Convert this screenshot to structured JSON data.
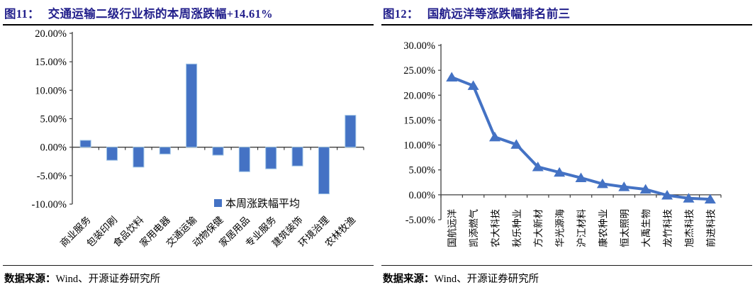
{
  "panels": [
    {
      "fig_label": "图11：",
      "title": "交通运输二级行业标的本周涨跌幅+14.61%",
      "source_prefix": "数据来源：",
      "source": "Wind、开源证券研究所"
    },
    {
      "fig_label": "图12：",
      "title": "国航远洋等涨跌幅排名前三",
      "source_prefix": "数据来源：",
      "source": "Wind、开源证券研究所"
    }
  ],
  "chart_data": [
    {
      "type": "bar",
      "title": "交通运输二级行业标的本周涨跌幅+14.61%",
      "categories": [
        "商业服务",
        "包装印刷",
        "食品饮料",
        "家用电器",
        "交通运输",
        "动物保健",
        "家居用品",
        "专业服务",
        "建筑装饰",
        "环境治理",
        "农林牧渔"
      ],
      "values": [
        1.2,
        -2.3,
        -3.5,
        -1.2,
        14.61,
        -1.4,
        -4.3,
        -3.8,
        -3.3,
        -8.2,
        5.6
      ],
      "legend": [
        "本周涨跌幅平均"
      ],
      "legend_position": "bottom-right",
      "xlabel": "",
      "ylabel": "",
      "ylim": [
        -10,
        20
      ],
      "ytick_step": 5,
      "ytick_decimals": 2,
      "ytick_suffix": "%",
      "grid": false,
      "bar_color": "#4472C4",
      "bar_border_color": "#9DC3E6"
    },
    {
      "type": "line",
      "title": "国航远洋等涨跌幅排名前三",
      "categories": [
        "国航远洋",
        "凯添燃气",
        "农大科技",
        "秋乐种业",
        "方大新材",
        "华光源海",
        "沪江材料",
        "康农种业",
        "恒太照明",
        "大禹生物",
        "龙竹科技",
        "旭杰科技",
        "前进科技"
      ],
      "values": [
        23.6,
        21.9,
        11.6,
        10.1,
        5.6,
        4.5,
        3.4,
        2.2,
        1.6,
        1.1,
        -0.1,
        -0.7,
        -0.9
      ],
      "marker": "triangle-up",
      "xlabel": "",
      "ylabel": "",
      "ylim": [
        -5,
        30
      ],
      "ytick_step": 5,
      "ytick_decimals": 2,
      "ytick_suffix": "%",
      "grid": false,
      "line_color": "#4472C4"
    }
  ],
  "colors": {
    "accent_blue": "#4472C4",
    "title_navy": "#23208C",
    "axis_gray": "#3f3f3f"
  }
}
